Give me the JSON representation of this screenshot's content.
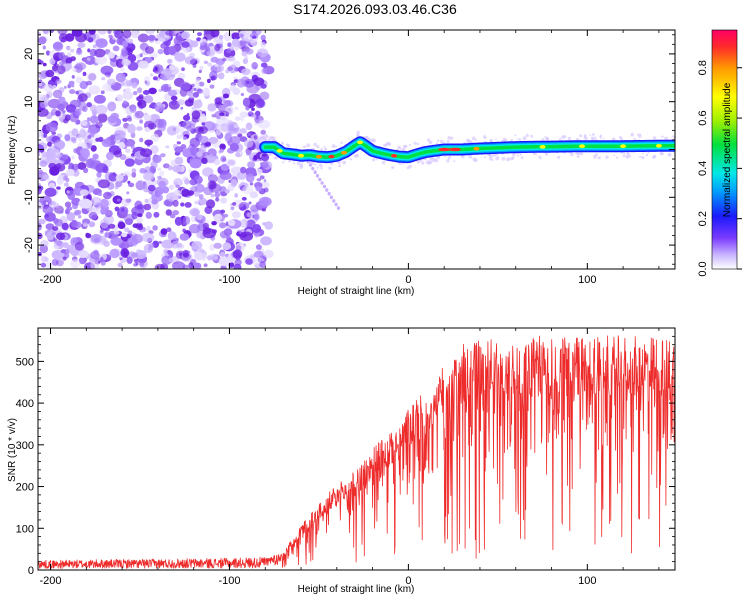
{
  "title": "S174.2026.093.03.46.C36",
  "chart_data": [
    {
      "type": "heatmap",
      "name": "spectrogram",
      "xlabel": "Height of straight line (km)",
      "ylabel": "Frequency (Hz)",
      "xlim": [
        -207,
        149
      ],
      "ylim": [
        -25,
        25
      ],
      "x_ticks": [
        -200,
        -100,
        0,
        100
      ],
      "x_tick_labels": [
        "-200",
        "-100",
        "0",
        "100"
      ],
      "y_ticks": [
        -20,
        -10,
        0,
        10,
        20
      ],
      "y_tick_labels": [
        "-20",
        "-10",
        "0",
        "10",
        "20"
      ],
      "noise_region_end_km": -78,
      "ridge": {
        "x": [
          -80,
          -75,
          -70,
          -65,
          -60,
          -55,
          -50,
          -45,
          -40,
          -35,
          -30,
          -27,
          -24,
          -20,
          -15,
          -10,
          -5,
          0,
          5,
          10,
          20,
          30,
          40,
          60,
          80,
          100,
          120,
          149
        ],
        "y": [
          0.5,
          0.5,
          -0.8,
          -1.0,
          -1.3,
          -1.2,
          -1.5,
          -1.6,
          -1.3,
          -0.5,
          0.8,
          1.5,
          0.8,
          -0.3,
          -0.8,
          -1.2,
          -1.5,
          -1.6,
          -1.0,
          -0.5,
          0.0,
          0.0,
          0.2,
          0.5,
          0.6,
          0.7,
          0.7,
          0.8
        ]
      },
      "colorbar": {
        "label": "Normalized spectral amplitude",
        "range": [
          0,
          0.95
        ],
        "ticks": [
          0.0,
          0.2,
          0.4,
          0.6,
          0.8
        ],
        "tick_labels": [
          "0.0",
          "0.2",
          "0.4",
          "0.6",
          "0.8"
        ]
      }
    },
    {
      "type": "line",
      "name": "snr",
      "xlabel": "Height of straight line (km)",
      "ylabel": "SNR (10 * v/v)",
      "xlim": [
        -207,
        149
      ],
      "ylim": [
        0,
        580
      ],
      "x_ticks": [
        -200,
        -100,
        0,
        100
      ],
      "x_tick_labels": [
        "-200",
        "-100",
        "0",
        "100"
      ],
      "y_ticks": [
        0,
        100,
        200,
        300,
        400,
        500
      ],
      "y_tick_labels": [
        "0",
        "100",
        "200",
        "300",
        "400",
        "500"
      ],
      "series": [
        {
          "name": "SNR",
          "color": "#ee2b2b",
          "envelope_x": [
            -207,
            -150,
            -100,
            -80,
            -70,
            -60,
            -50,
            -40,
            -30,
            -20,
            -10,
            0,
            10,
            20,
            30,
            40,
            50,
            60,
            80,
            100,
            120,
            149
          ],
          "envelope_y": [
            18,
            20,
            22,
            24,
            40,
            100,
            150,
            190,
            220,
            270,
            310,
            360,
            400,
            460,
            500,
            510,
            515,
            520,
            520,
            520,
            520,
            515
          ]
        }
      ]
    }
  ]
}
